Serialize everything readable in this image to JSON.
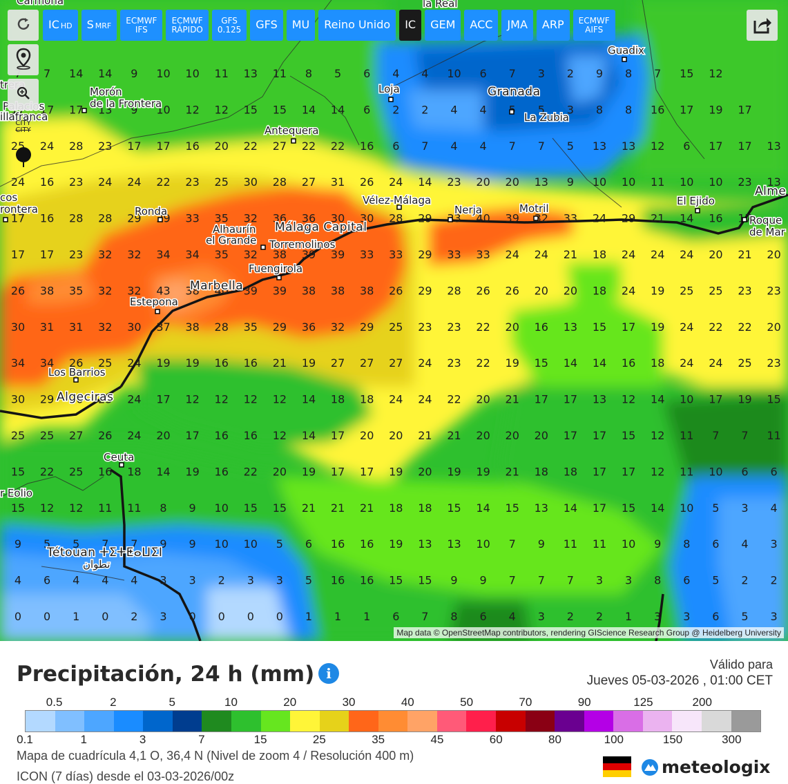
{
  "toolbar": {
    "models": [
      {
        "label": "IC",
        "sub": "HD",
        "small": false,
        "active": false
      },
      {
        "label": "S",
        "sub": "MRF",
        "small": false,
        "active": false
      },
      {
        "label": "ECMWF",
        "sub2": "IFS",
        "small": true,
        "active": false
      },
      {
        "label": "ECMWF",
        "sub2": "RÁPIDO",
        "small": true,
        "active": false
      },
      {
        "label": "GFS",
        "sub2": "0.125",
        "small": true,
        "active": false
      },
      {
        "label": "GFS",
        "small": false,
        "active": false
      },
      {
        "label": "MU",
        "small": false,
        "active": false
      },
      {
        "label": "Reino Unido",
        "small": false,
        "active": false
      },
      {
        "label": "IC",
        "small": false,
        "active": true
      },
      {
        "label": "GEM",
        "small": false,
        "active": false
      },
      {
        "label": "ACC",
        "small": false,
        "active": false
      },
      {
        "label": "JMA",
        "small": false,
        "active": false
      },
      {
        "label": "ARP",
        "small": false,
        "active": false
      },
      {
        "label": "ECMWF",
        "sub2": "AIFS",
        "small": true,
        "active": false
      }
    ],
    "side_tools": [
      "refresh-icon",
      "location-pin-icon",
      "zoom-in-icon",
      "city-toggle-icon",
      "point-marker-icon"
    ],
    "city_toggle_label": "CITY",
    "share_icon": "share-icon"
  },
  "map": {
    "attribution": "Map data © OpenStreetMap contributors, rendering GIScience Research Group @ Heidelberg University",
    "grid_values": [
      [
        7,
        7,
        14,
        14,
        9,
        10,
        10,
        11,
        13,
        11,
        8,
        5,
        6,
        4,
        4,
        10,
        6,
        7,
        3,
        2,
        9,
        8,
        7,
        15,
        12
      ],
      [
        17,
        17,
        17,
        13,
        9,
        10,
        12,
        12,
        15,
        15,
        14,
        14,
        6,
        2,
        2,
        4,
        4,
        5,
        5,
        3,
        8,
        8,
        16,
        17,
        19,
        17
      ],
      [
        25,
        24,
        28,
        23,
        17,
        17,
        16,
        20,
        22,
        27,
        22,
        22,
        16,
        6,
        7,
        4,
        4,
        7,
        7,
        5,
        13,
        13,
        12,
        6,
        17,
        17,
        13
      ],
      [
        24,
        16,
        23,
        24,
        24,
        22,
        23,
        25,
        30,
        28,
        27,
        31,
        26,
        24,
        14,
        23,
        20,
        20,
        13,
        9,
        10,
        10,
        11,
        10,
        10,
        23,
        13
      ],
      [
        17,
        16,
        28,
        28,
        29,
        29,
        33,
        35,
        32,
        36,
        36,
        30,
        30,
        28,
        29,
        33,
        40,
        39,
        32,
        33,
        24,
        29,
        21,
        14,
        16,
        17
      ],
      [
        17,
        17,
        23,
        32,
        32,
        34,
        34,
        35,
        32,
        38,
        39,
        39,
        33,
        33,
        29,
        33,
        33,
        24,
        24,
        21,
        18,
        24,
        24,
        24,
        20,
        21,
        20
      ],
      [
        26,
        38,
        35,
        32,
        32,
        43,
        38,
        40,
        39,
        39,
        38,
        38,
        38,
        26,
        29,
        28,
        26,
        26,
        20,
        20,
        18,
        24,
        19,
        25,
        25,
        23,
        23
      ],
      [
        30,
        31,
        31,
        32,
        30,
        37,
        38,
        28,
        35,
        29,
        36,
        32,
        29,
        25,
        23,
        23,
        22,
        20,
        16,
        13,
        15,
        17,
        19,
        24,
        22,
        22,
        20
      ],
      [
        34,
        34,
        26,
        25,
        24,
        19,
        19,
        16,
        16,
        21,
        19,
        27,
        27,
        27,
        24,
        23,
        22,
        19,
        15,
        14,
        14,
        16,
        18,
        24,
        24,
        25,
        23
      ],
      [
        30,
        29,
        26,
        23,
        24,
        17,
        12,
        12,
        12,
        12,
        14,
        18,
        18,
        24,
        24,
        22,
        20,
        21,
        17,
        17,
        13,
        12,
        14,
        10,
        17,
        19,
        15
      ],
      [
        25,
        25,
        27,
        26,
        24,
        20,
        17,
        16,
        16,
        12,
        14,
        17,
        20,
        20,
        21,
        21,
        20,
        20,
        20,
        17,
        17,
        15,
        12,
        11,
        7,
        7,
        11
      ],
      [
        15,
        22,
        25,
        16,
        18,
        14,
        19,
        16,
        22,
        20,
        19,
        17,
        17,
        19,
        20,
        19,
        19,
        21,
        18,
        18,
        17,
        17,
        12,
        11,
        10,
        6,
        6
      ],
      [
        15,
        12,
        12,
        11,
        11,
        8,
        9,
        10,
        15,
        15,
        21,
        21,
        21,
        18,
        18,
        15,
        14,
        15,
        13,
        14,
        17,
        15,
        14,
        10,
        5,
        3,
        4
      ],
      [
        9,
        5,
        5,
        7,
        7,
        9,
        9,
        10,
        10,
        5,
        6,
        16,
        16,
        19,
        13,
        13,
        10,
        7,
        9,
        11,
        11,
        10,
        9,
        8,
        6,
        4,
        3
      ],
      [
        4,
        6,
        4,
        4,
        4,
        3,
        3,
        2,
        3,
        3,
        5,
        16,
        16,
        15,
        15,
        9,
        9,
        7,
        7,
        7,
        3,
        3,
        8,
        6,
        5,
        2,
        2
      ],
      [
        0,
        0,
        1,
        0,
        2,
        3,
        0,
        0,
        0,
        0,
        1,
        1,
        1,
        6,
        7,
        8,
        6,
        4,
        3,
        2,
        2,
        1,
        3,
        3,
        6,
        5,
        3,
        1
      ]
    ],
    "top_partial_labels": [
      "Carmona",
      "la Real"
    ],
    "cities": [
      {
        "name": "Guadix",
        "major": false
      },
      {
        "name": "Loja",
        "major": false
      },
      {
        "name": "Granada",
        "major": true
      },
      {
        "name": "La Zubia",
        "major": false
      },
      {
        "name": "Morón",
        "major": false
      },
      {
        "name": "de la Frontera",
        "major": false
      },
      {
        "name": "Antequera",
        "major": false
      },
      {
        "name": "Vélez-Málaga",
        "major": false
      },
      {
        "name": "Nerja",
        "major": false
      },
      {
        "name": "Motril",
        "major": false
      },
      {
        "name": "El Ejido",
        "major": false
      },
      {
        "name": "Alme",
        "major": true
      },
      {
        "name": "Roque",
        "major": false
      },
      {
        "name": "de Mar",
        "major": false
      },
      {
        "name": "Ronda",
        "major": false
      },
      {
        "name": "Alhaurín",
        "major": false
      },
      {
        "name": "el Grande",
        "major": false
      },
      {
        "name": "Málaga Capital",
        "major": true
      },
      {
        "name": "Torremolinos",
        "major": false
      },
      {
        "name": "Fuengirola",
        "major": false
      },
      {
        "name": "Marbella",
        "major": true
      },
      {
        "name": "Estepona",
        "major": false
      },
      {
        "name": "Los Barrios",
        "major": false
      },
      {
        "name": "Algeciras",
        "major": true
      },
      {
        "name": "Ceuta",
        "major": false
      },
      {
        "name": "Tétouan ⵜⵉⵜⵟⴰⵡⵉⵏ",
        "major": true
      },
      {
        "name": "تطوان",
        "major": false
      },
      {
        "name": "trera",
        "major": false
      },
      {
        "name": "Palacios",
        "major": false
      },
      {
        "name": "illafranca",
        "major": false
      },
      {
        "name": "cos",
        "major": false
      },
      {
        "name": "rontera",
        "major": false
      },
      {
        "name": "r Eolio",
        "major": false
      }
    ]
  },
  "legend": {
    "title": "Precipitación, 24 h (mm)",
    "info_icon": "info-icon",
    "valid_label": "Válido para",
    "valid_date": "Jueves 05-03-2026 , 01:00 CET",
    "colors": [
      "#b3d9ff",
      "#80bfff",
      "#4da6ff",
      "#1a8cff",
      "#0066cc",
      "#003d8f",
      "#1f8a1f",
      "#2ec02e",
      "#66e61f",
      "#fff538",
      "#e6d21a",
      "#ff6619",
      "#ff8c33",
      "#ffa366",
      "#ff5a78",
      "#ff1f4b",
      "#c80000",
      "#8a0014",
      "#6a0090",
      "#b400e6",
      "#d96ee6",
      "#ebb3f0",
      "#f7e6fa",
      "#d9d9d9",
      "#9a9a9a"
    ],
    "top_ticks": [
      "0.5",
      "2",
      "5",
      "10",
      "20",
      "30",
      "40",
      "50",
      "70",
      "90",
      "125",
      "200"
    ],
    "bottom_ticks": [
      "0.1",
      "1",
      "3",
      "7",
      "15",
      "25",
      "35",
      "45",
      "60",
      "80",
      "100",
      "150",
      "300"
    ],
    "grid_info": "Mapa de cuadrícula 4,1 O, 36,4 N  (Nivel de zoom 4 / Resolución 400 m)",
    "run_info": "ICON (7 días) desde el 03-03-2026/00z",
    "brand": "meteologix",
    "brand_icon": "meteologix-logo-icon",
    "flag_icon": "germany-flag-icon"
  }
}
